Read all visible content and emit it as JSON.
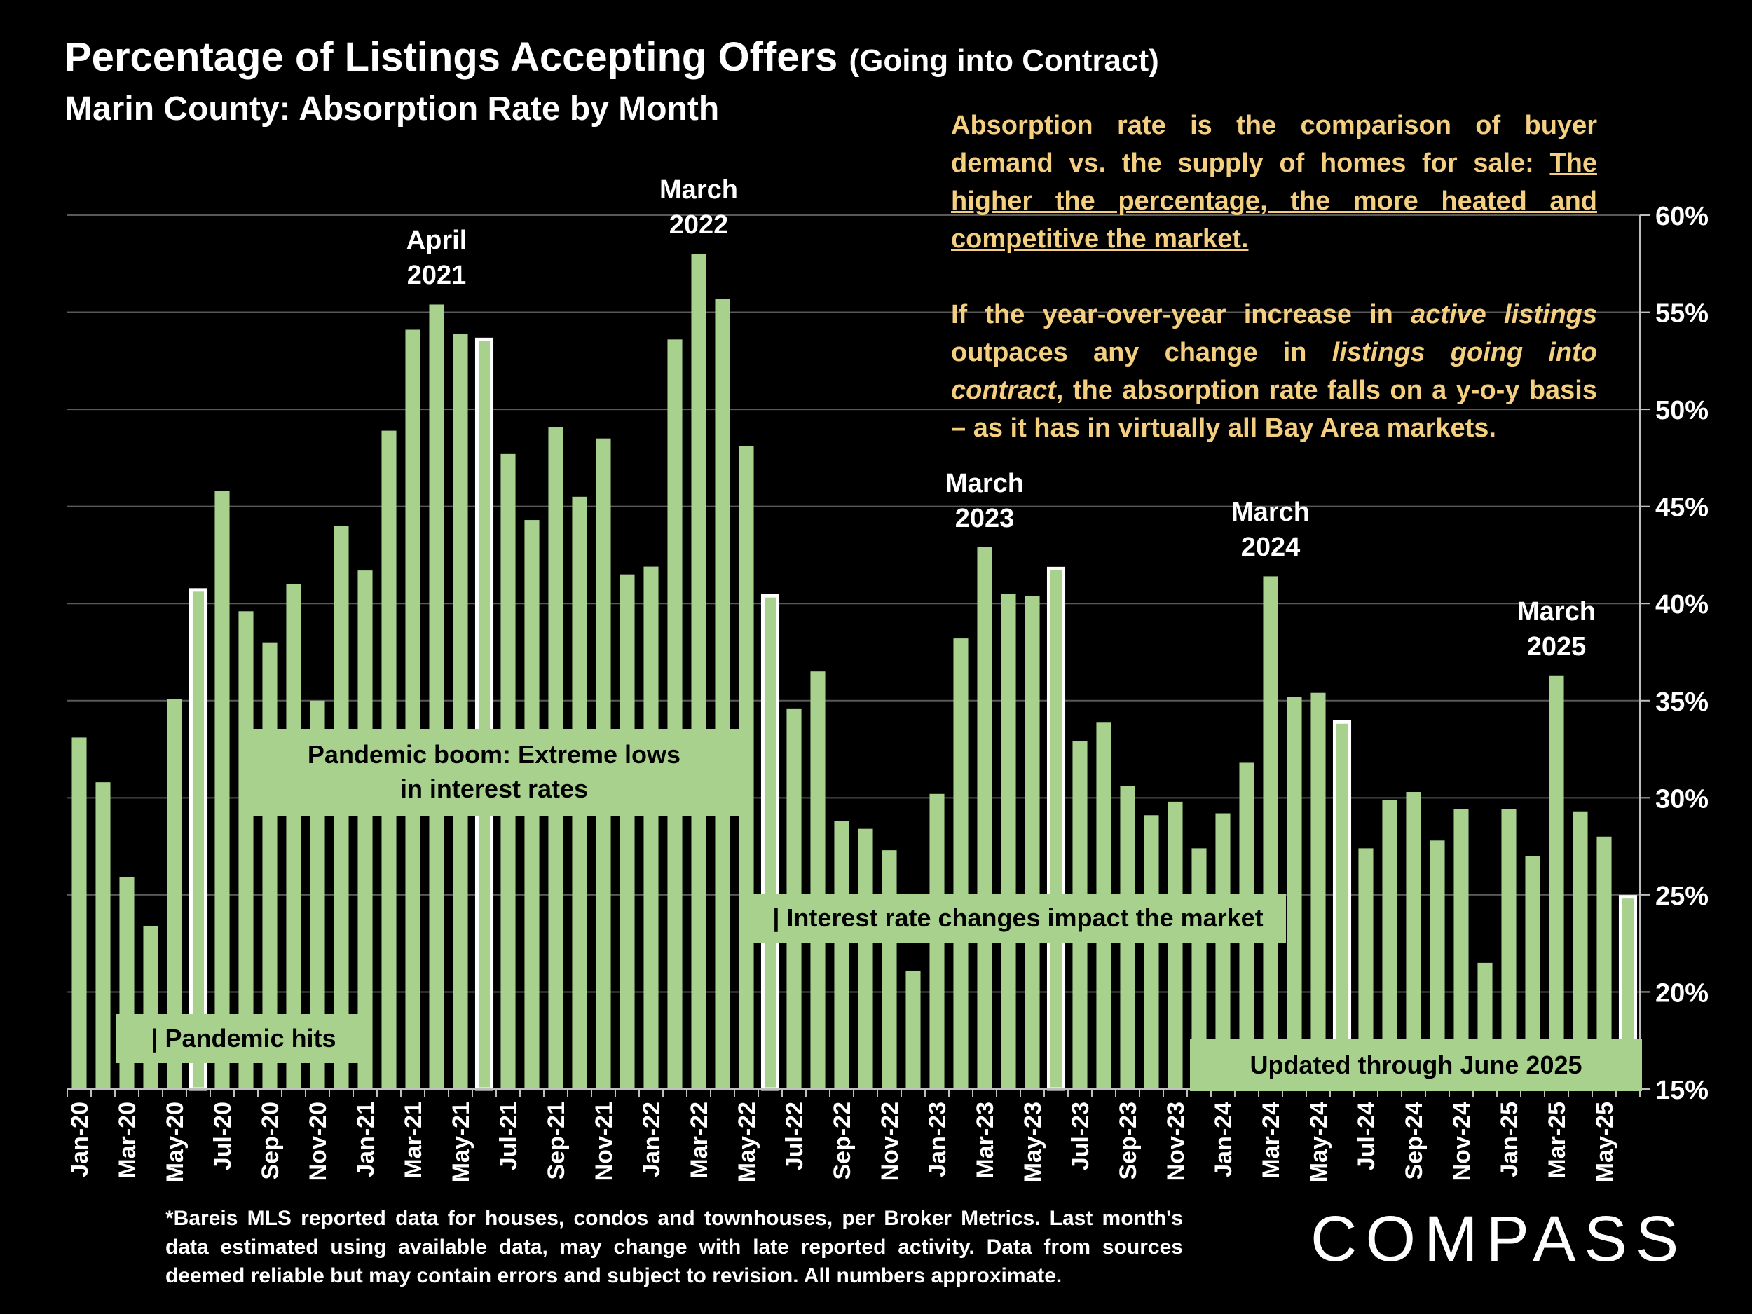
{
  "title": {
    "main": "Percentage of Listings Accepting Offers",
    "paren": "(Going into Contract)"
  },
  "subtitle": "Marin County:  Absorption Rate by Month",
  "note": {
    "p1_a": "Absorption rate is the comparison of buyer demand vs. the supply of homes for sale: ",
    "p1_u": "The higher the percentage, the more heated and competitive the market.",
    "p2_a": "If the year-over-year increase in ",
    "p2_i1": "active listings",
    "p2_b": " outpaces any change in ",
    "p2_i2": "listings going into contract",
    "p2_c": ", the absorption rate falls on a y-o-y basis – as it has in virtually all Bay Area markets."
  },
  "boxes": {
    "pandemic_boom": "Pandemic boom: Extreme lows in interest rates",
    "pandemic_hits": "| Pandemic hits",
    "interest_rate": "| Interest rate changes impact the market",
    "updated": "Updated through June 2025"
  },
  "peaks": [
    {
      "label_l1": "April",
      "label_l2": "2021",
      "index": 15
    },
    {
      "label_l1": "March",
      "label_l2": "2022",
      "index": 26
    },
    {
      "label_l1": "March",
      "label_l2": "2023",
      "index": 38
    },
    {
      "label_l1": "March",
      "label_l2": "2024",
      "index": 50
    },
    {
      "label_l1": "March",
      "label_l2": "2025",
      "index": 62
    }
  ],
  "footnote": "*Bareis MLS reported data for houses, condos and townhouses, per Broker Metrics. Last month's data estimated using available data, may change with late reported activity. Data from sources deemed reliable but may contain errors and subject to revision. All numbers approximate.",
  "logo": "COMPASS",
  "colors": {
    "bar": "#a9d18e",
    "note": "#f4cf80",
    "bg": "#000000",
    "grid": "#595959"
  },
  "chart_data": {
    "type": "bar",
    "title": "Percentage of Listings Accepting Offers (Going into Contract)",
    "ylabel": "",
    "ylim": [
      15,
      60
    ],
    "yticks": [
      15,
      20,
      25,
      30,
      35,
      40,
      45,
      50,
      55,
      60
    ],
    "ytick_labels": [
      "15%",
      "20%",
      "25%",
      "30%",
      "35%",
      "40%",
      "45%",
      "50%",
      "55%",
      "60%"
    ],
    "categories": [
      "Jan-20",
      "Feb-20",
      "Mar-20",
      "Apr-20",
      "May-20",
      "Jun-20",
      "Jul-20",
      "Aug-20",
      "Sep-20",
      "Oct-20",
      "Nov-20",
      "Dec-20",
      "Jan-21",
      "Feb-21",
      "Mar-21",
      "Apr-21",
      "May-21",
      "Jun-21",
      "Jul-21",
      "Aug-21",
      "Sep-21",
      "Oct-21",
      "Nov-21",
      "Dec-21",
      "Jan-22",
      "Feb-22",
      "Mar-22",
      "Apr-22",
      "May-22",
      "Jun-22",
      "Jul-22",
      "Aug-22",
      "Sep-22",
      "Oct-22",
      "Nov-22",
      "Dec-22",
      "Jan-23",
      "Feb-23",
      "Mar-23",
      "Apr-23",
      "May-23",
      "Jun-23",
      "Jul-23",
      "Aug-23",
      "Sep-23",
      "Oct-23",
      "Nov-23",
      "Dec-23",
      "Jan-24",
      "Feb-24",
      "Mar-24",
      "Apr-24",
      "May-24",
      "Jun-24",
      "Jul-24",
      "Aug-24",
      "Sep-24",
      "Oct-24",
      "Nov-24",
      "Dec-24",
      "Jan-25",
      "Feb-25",
      "Mar-25",
      "Apr-25",
      "May-25",
      "Jun-25"
    ],
    "x_tick_labels": [
      "Jan-20",
      "Mar-20",
      "May-20",
      "Jul-20",
      "Sep-20",
      "Nov-20",
      "Jan-21",
      "Mar-21",
      "May-21",
      "Jul-21",
      "Sep-21",
      "Nov-21",
      "Jan-22",
      "Mar-22",
      "May-22",
      "Jul-22",
      "Sep-22",
      "Nov-22",
      "Jan-23",
      "Mar-23",
      "May-23",
      "Jul-23",
      "Sep-23",
      "Nov-23",
      "Jan-24",
      "Mar-24",
      "May-24",
      "Jul-24",
      "Sep-24",
      "Nov-24",
      "Jan-25",
      "Mar-25",
      "May-25"
    ],
    "values": [
      33.1,
      30.8,
      25.9,
      23.4,
      35.1,
      40.7,
      45.8,
      39.6,
      38.0,
      41.0,
      35.0,
      44.0,
      41.7,
      48.9,
      54.1,
      55.4,
      53.9,
      53.6,
      47.7,
      44.3,
      49.1,
      45.5,
      48.5,
      41.5,
      41.9,
      53.6,
      58.0,
      55.7,
      48.1,
      40.4,
      34.6,
      36.5,
      28.8,
      28.4,
      27.3,
      21.1,
      30.2,
      38.2,
      42.9,
      40.5,
      40.4,
      41.8,
      32.9,
      33.9,
      30.6,
      29.1,
      29.8,
      27.4,
      29.2,
      31.8,
      41.4,
      35.2,
      35.4,
      33.9,
      27.4,
      29.9,
      30.3,
      27.8,
      29.4,
      21.5,
      29.4,
      27.0,
      36.3,
      29.3,
      28.0,
      24.9
    ],
    "highlighted_months": [
      "Jun-20",
      "Jun-21",
      "Jun-22",
      "Jun-23",
      "Jun-24",
      "Jun-25"
    ]
  }
}
